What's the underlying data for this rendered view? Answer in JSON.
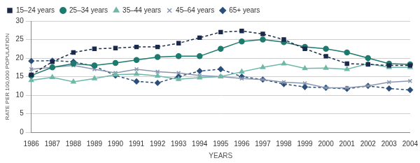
{
  "chart_data": {
    "type": "line",
    "x_label": "YEARS",
    "y_label": "RATE PER 100,000 POPULATION",
    "categories": [
      "1986",
      "1987",
      "1988",
      "1989",
      "1990",
      "1991",
      "1992",
      "1993",
      "1994",
      "1995",
      "1996",
      "1997",
      "1998",
      "1999",
      "2000",
      "2001",
      "2002",
      "2003",
      "2004"
    ],
    "ylim": [
      0,
      30
    ],
    "yticks": [
      0,
      5,
      10,
      15,
      20,
      25,
      30
    ],
    "grid": true,
    "legend": "top-left",
    "series": [
      {
        "name": "15–24 years",
        "color": "#1b2a4a",
        "marker": "square",
        "line_style": "dashed",
        "values": [
          15.5,
          19,
          21.5,
          22.5,
          22.7,
          23,
          23,
          24,
          25.5,
          27,
          27.3,
          26.5,
          25,
          22.5,
          20.5,
          18.5,
          18.3,
          18,
          18
        ]
      },
      {
        "name": "25–34 years",
        "color": "#1f7a6e",
        "marker": "circle",
        "line_style": "solid",
        "values": [
          15.3,
          17.5,
          18.5,
          18,
          18.7,
          19.5,
          20.3,
          20.5,
          20.5,
          22.5,
          24.5,
          25,
          24.3,
          23,
          22.5,
          21.5,
          20,
          18.5,
          18.3
        ]
      },
      {
        "name": "35–44 years",
        "color": "#6fb8a8",
        "marker": "triangle",
        "line_style": "solid",
        "values": [
          14,
          14.8,
          13.6,
          14.5,
          15.5,
          15.7,
          15.2,
          14.3,
          14.7,
          15,
          16.3,
          17.5,
          18.5,
          17.2,
          17.3,
          17,
          18.5,
          17.5,
          17.5
        ]
      },
      {
        "name": "45–64 years",
        "color": "#8a96b0",
        "marker": "x",
        "line_style": "solid",
        "values": [
          17,
          17.5,
          18,
          17,
          16,
          17,
          16.3,
          16,
          15.3,
          15,
          14.5,
          14.2,
          13.5,
          13.2,
          12,
          12,
          12.5,
          13.5,
          13.8
        ]
      },
      {
        "name": "65+ years",
        "color": "#2a4f7a",
        "marker": "diamond",
        "line_style": "dashed",
        "values": [
          19.2,
          19.3,
          19,
          17.8,
          15.3,
          13.7,
          13.3,
          15,
          16.5,
          17,
          15,
          14.2,
          13,
          12.2,
          12,
          11.7,
          12.5,
          11.8,
          11.4
        ]
      }
    ]
  }
}
